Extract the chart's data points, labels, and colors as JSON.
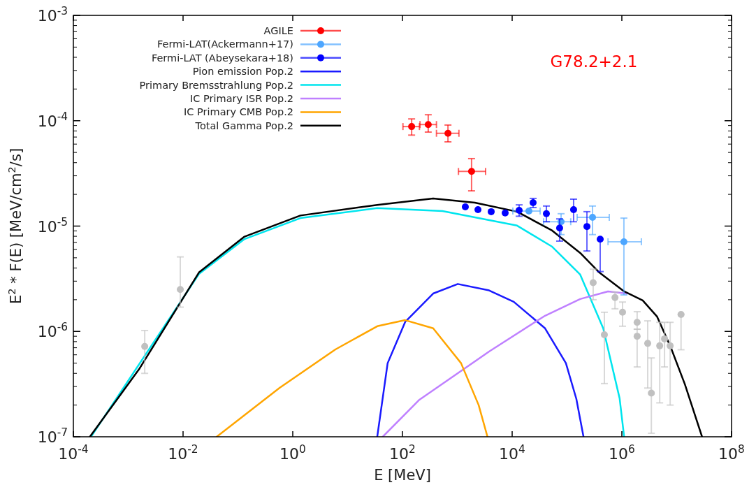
{
  "chart_data": {
    "type": "scatter",
    "xlabel": "E [MeV]",
    "ylabel": "E$^{2}$ * F(E) [MeV/cm$^{2}$/s]",
    "log": "xy",
    "legend": "top left",
    "xlim": [
      0.0001,
      100000000
    ],
    "ylim": [
      1e-07,
      0.001
    ],
    "xticks": [
      {
        "value": 0.0001,
        "label": "10$^{-4}$"
      },
      {
        "value": 0.01,
        "label": "10$^{-2}$"
      },
      {
        "value": 1,
        "label": "10$^{0}$"
      },
      {
        "value": 100,
        "label": "10$^{2}$"
      },
      {
        "value": 10000,
        "label": "10$^{4}$"
      },
      {
        "value": 1000000,
        "label": "10$^{6}$"
      },
      {
        "value": 100000000,
        "label": "10$^{8}$"
      }
    ],
    "yticks": [
      {
        "value": 1e-07,
        "label": "10$^{-7}$"
      },
      {
        "value": 1e-06,
        "label": "10$^{-6}$"
      },
      {
        "value": 1e-05,
        "label": "10$^{-5}$"
      },
      {
        "value": 0.0001,
        "label": "10$^{-4}$"
      },
      {
        "value": 0.001,
        "label": "10$^{-3}$"
      }
    ],
    "annotations": [
      "G78.2+2.1"
    ],
    "series": [
      {
        "name": "AGILE",
        "marker": "circle",
        "color": "#ff0000",
        "x": [
          147,
          295,
          676,
          1820
        ],
        "values": [
          8.8e-05,
          9.2e-05,
          7.6e-05,
          3.3e-05
        ],
        "errors": [
          [
            7.3e-05,
            0.000104
          ],
          [
            7.8e-05,
            0.000114
          ],
          [
            6.3e-05,
            9.1e-05
          ],
          [
            2.16e-05,
            4.37e-05
          ]
        ],
        "xerrors": [
          [
            102,
            204
          ],
          [
            209,
            417
          ],
          [
            417,
            1070
          ],
          [
            1050,
            3280
          ]
        ]
      },
      {
        "name": "Fermi-LAT(Ackermann+17)",
        "marker": "circle",
        "color": "#4da6ff",
        "x": [
          20200,
          78000,
          292000,
          1090000
        ],
        "values": [
          1.39e-05,
          1.1e-05,
          1.21e-05,
          7.1e-06
        ],
        "errors": [
          null,
          [
            8.3e-06,
            1.31e-05
          ],
          [
            8.3e-06,
            1.55e-05
          ],
          [
            2.22e-06,
            1.19e-05
          ]
        ],
        "xerrors": [
          [
            10300,
            32400
          ],
          [
            37400,
            117000
          ],
          [
            153000,
            590000
          ],
          [
            560000,
            2270000
          ]
        ]
      },
      {
        "name": "Fermi-LAT (Abeysekara+18)",
        "marker": "circle",
        "color": "#0000ff",
        "x": [
          1400,
          2380,
          4150,
          7460,
          13400,
          24100,
          42100,
          73400,
          132000,
          231000,
          403000
        ],
        "values": [
          1.52e-05,
          1.43e-05,
          1.37e-05,
          1.33e-05,
          1.41e-05,
          1.67e-05,
          1.31e-05,
          9.6e-06,
          1.43e-05,
          9.9e-06,
          7.5e-06
        ],
        "errors": [
          null,
          null,
          null,
          null,
          [
            1.24e-05,
            1.59e-05
          ],
          [
            1.5e-05,
            1.83e-05
          ],
          [
            1.1e-05,
            1.55e-05
          ],
          [
            7.2e-06,
            1.17e-05
          ],
          [
            1.1e-05,
            1.8e-05
          ],
          [
            5.8e-06,
            1.37e-05
          ],
          [
            3.7e-06,
            7.5e-06
          ]
        ]
      },
      {
        "name": "Pion emission Pop.2",
        "type": "line",
        "marker": "none",
        "color": "#1a1aff",
        "x": [
          34.7,
          53.7,
          112,
          363,
          1020,
          3800,
          10700,
          39800,
          95500,
          148000,
          200000
        ],
        "values": [
          1e-07,
          5e-07,
          1.23e-06,
          2.29e-06,
          2.82e-06,
          2.45e-06,
          1.91e-06,
          1.07e-06,
          5e-07,
          2.29e-07,
          1e-07
        ]
      },
      {
        "name": "Primary Bremsstrahlung Pop.2",
        "type": "line",
        "marker": "none",
        "color": "#00e5ee",
        "x": [
          0.00021,
          0.0195,
          0.132,
          1.38,
          34.7,
          537,
          12300,
          53700,
          174000,
          457000,
          910000,
          1100000
        ],
        "values": [
          1e-07,
          3.51e-06,
          7.53e-06,
          1.19e-05,
          1.48e-05,
          1.39e-05,
          1.01e-05,
          6.37e-06,
          3.46e-06,
          1.07e-06,
          2.32e-07,
          1e-07
        ]
      },
      {
        "name": "IC Primary ISR Pop.2",
        "type": "line",
        "marker": "none",
        "color": "#bf80ff",
        "x": [
          43.7,
          204,
          3800,
          39800,
          174000,
          560000,
          1230000
        ],
        "values": [
          1e-07,
          2.25e-07,
          6.44e-07,
          1.41e-06,
          2.03e-06,
          2.4e-06,
          2.29e-06
        ]
      },
      {
        "name": "IC Primary CMB Pop.2",
        "type": "line",
        "marker": "none",
        "color": "#ffa500",
        "x": [
          0.041,
          0.575,
          6.0,
          34.7,
          112,
          363,
          1170,
          2450,
          3550
        ],
        "values": [
          1e-07,
          2.91e-07,
          6.75e-07,
          1.12e-06,
          1.28e-06,
          1.07e-06,
          5e-07,
          2e-07,
          1e-07
        ]
      },
      {
        "name": "Total Gamma Pop.2",
        "type": "line",
        "marker": "none",
        "color": "#000000",
        "x": [
          0.0002,
          0.00162,
          0.0195,
          0.132,
          1.38,
          34.7,
          363,
          2090,
          12300,
          53700,
          174000,
          390000,
          1100000,
          2400000,
          4400000,
          7800000,
          14100000,
          29000000
        ],
        "values": [
          1e-07,
          4.47e-07,
          3.63e-06,
          7.94e-06,
          1.26e-05,
          1.59e-05,
          1.83e-05,
          1.67e-05,
          1.37e-05,
          9.06e-06,
          5.56e-06,
          3.62e-06,
          2.4e-06,
          1.97e-06,
          1.38e-06,
          7.06e-07,
          3.15e-07,
          1e-07
        ]
      },
      {
        "marker": "circle",
        "color": "#c0c0c0",
        "x": [
          0.002,
          0.0089,
          300000,
          480000,
          750000,
          1030000,
          1900000,
          1900000,
          2960000,
          3450000,
          4900000,
          6000000,
          7600000,
          12000000
        ],
        "values": [
          7.2e-07,
          2.5e-06,
          2.9e-06,
          9.3e-07,
          2.1e-06,
          1.52e-06,
          1.22e-06,
          9e-07,
          7.7e-07,
          2.6e-07,
          7.3e-07,
          8.5e-07,
          7.3e-07,
          1.45e-06
        ],
        "errors": [
          [
            4e-07,
            1.02e-06
          ],
          [
            1.7e-06,
            5.1e-06
          ],
          [
            2e-06,
            3.9e-06
          ],
          [
            3.2e-07,
            1.52e-06
          ],
          [
            1.64e-06,
            2.36e-06
          ],
          [
            1.12e-06,
            1.9e-06
          ],
          [
            1.05e-06,
            1.54e-06
          ],
          [
            4.6e-07,
            1.05e-06
          ],
          [
            2.9e-07,
            1.26e-06
          ],
          [
            1.08e-07,
            5.6e-07
          ],
          [
            2.1e-07,
            1.22e-06
          ],
          [
            4.6e-07,
            1.22e-06
          ],
          [
            2e-07,
            1.22e-06
          ],
          [
            6.7e-07,
            1.45e-06
          ]
        ]
      }
    ]
  }
}
